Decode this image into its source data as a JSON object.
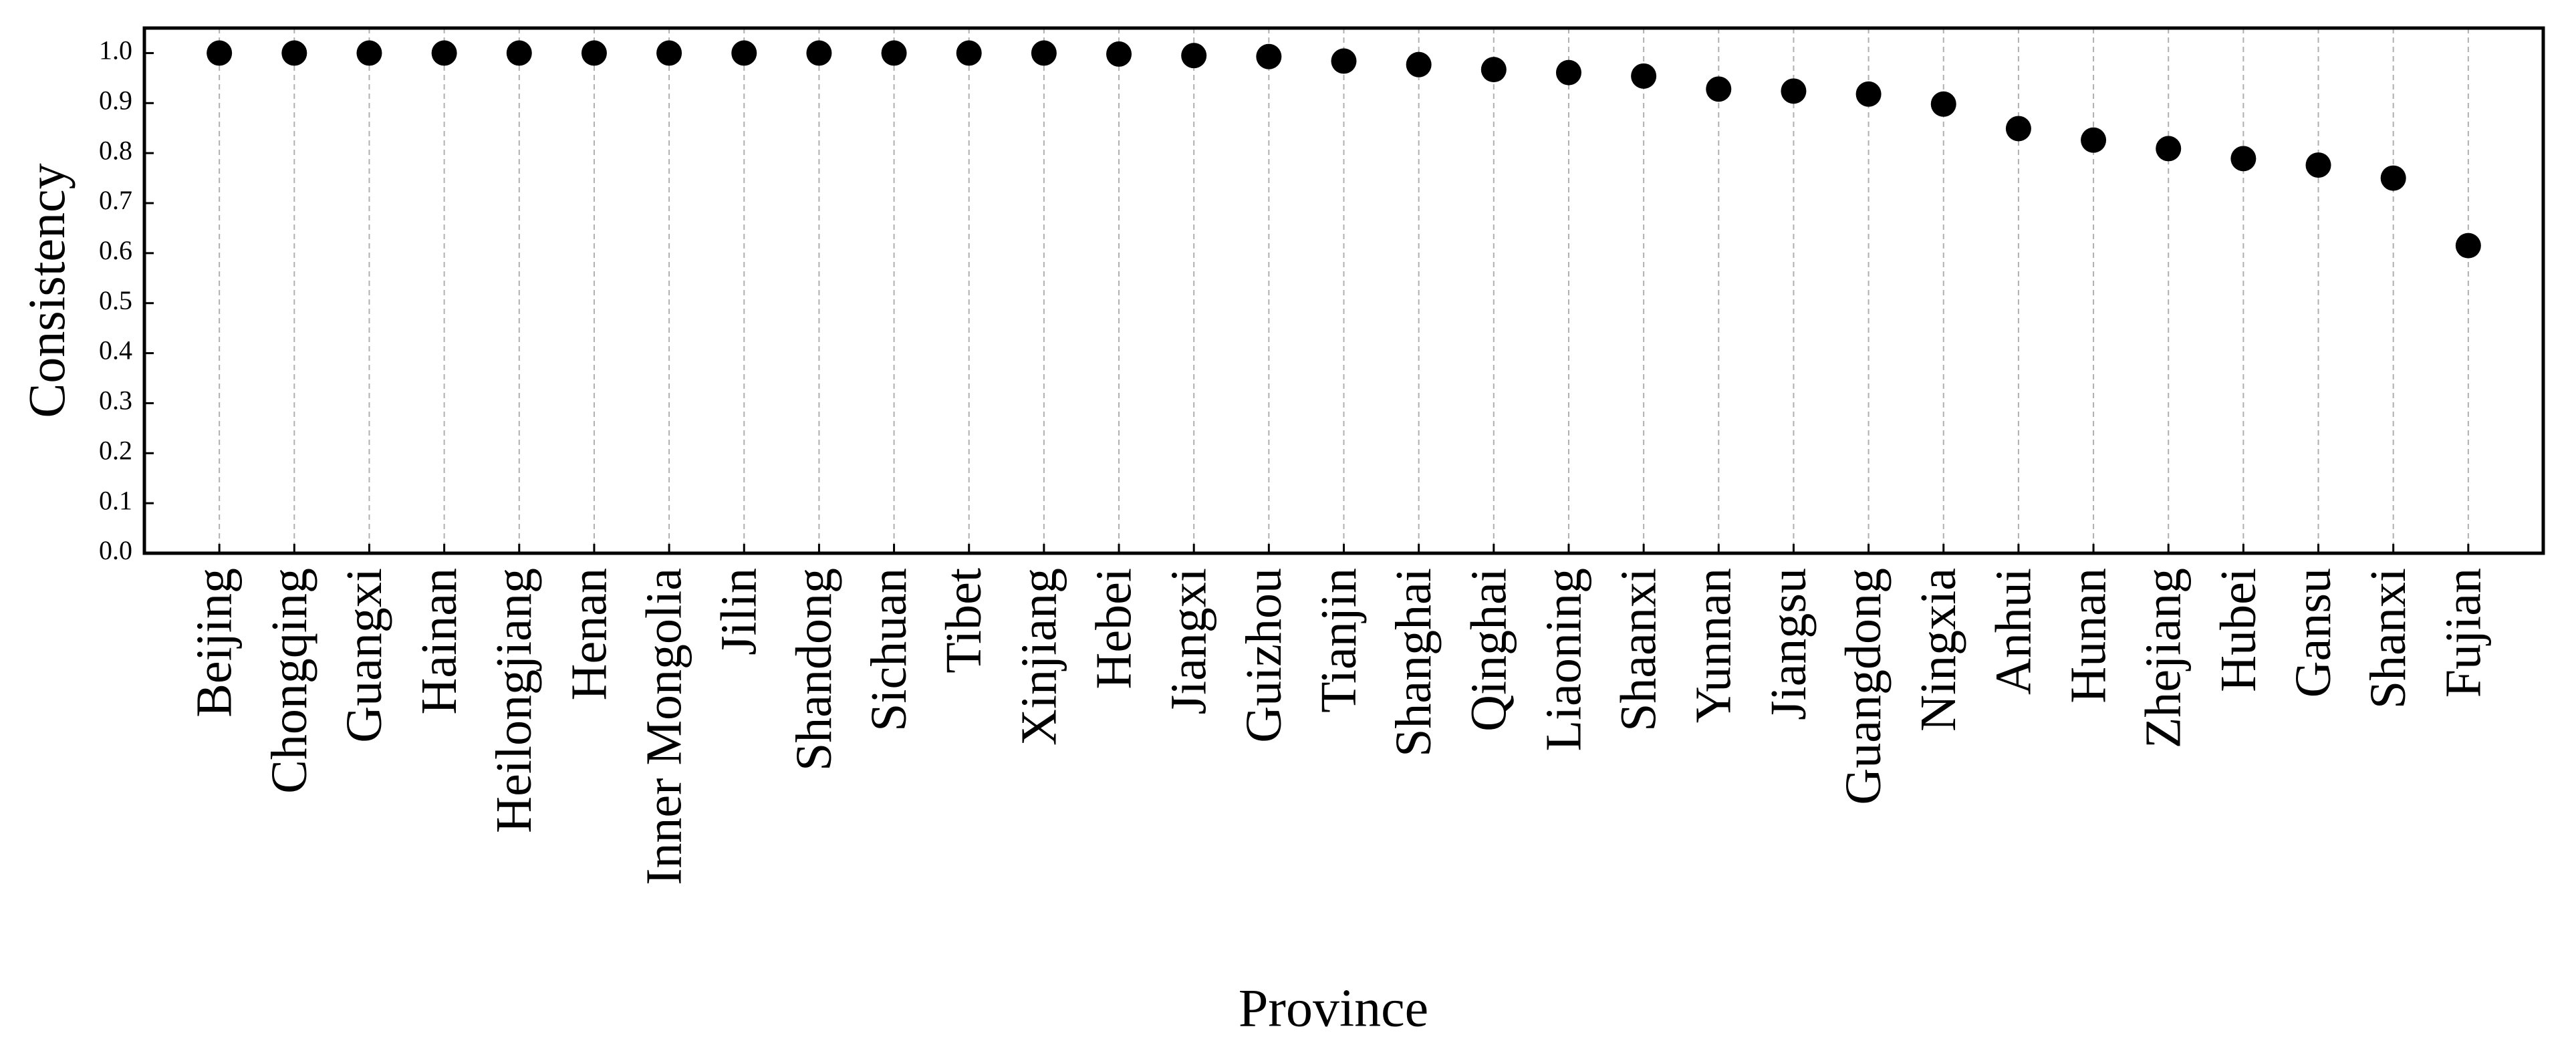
{
  "chart_data": {
    "type": "dot",
    "x_label": "Province",
    "y_label": "Consistency",
    "categories": [
      "Beijing",
      "Chongqing",
      "Guangxi",
      "Hainan",
      "Heilongjiang",
      "Henan",
      "Inner Mongolia",
      "Jilin",
      "Shandong",
      "Sichuan",
      "Tibet",
      "Xinjiang",
      "Hebei",
      "Jiangxi",
      "Guizhou",
      "Tianjin",
      "Shanghai",
      "Qinghai",
      "Liaoning",
      "Shaanxi",
      "Yunnan",
      "Jiangsu",
      "Guangdong",
      "Ningxia",
      "Anhui",
      "Hunan",
      "Zhejiang",
      "Hubei",
      "Gansu",
      "Shanxi",
      "Fujian"
    ],
    "values": [
      1.0,
      1.0,
      1.0,
      1.0,
      1.0,
      1.0,
      1.0,
      1.0,
      1.0,
      1.0,
      1.0,
      1.0,
      0.998,
      0.995,
      0.993,
      0.984,
      0.977,
      0.967,
      0.961,
      0.954,
      0.928,
      0.924,
      0.918,
      0.898,
      0.849,
      0.826,
      0.809,
      0.789,
      0.776,
      0.75,
      0.615
    ],
    "color": "#000000",
    "ylim": [
      0,
      1.05
    ],
    "yticks": [
      {
        "value": 0,
        "label": "0.0"
      },
      0.1,
      0.2,
      0.3,
      0.4,
      0.5,
      0.6,
      0.7,
      0.8,
      0.9,
      {
        "value": 1,
        "label": "1.0"
      }
    ],
    "grid": "x"
  }
}
